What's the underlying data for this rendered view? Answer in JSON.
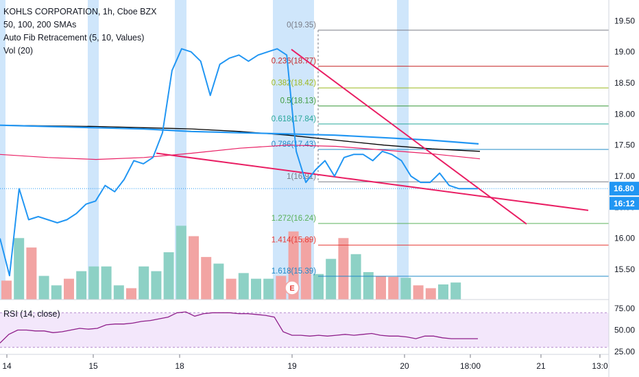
{
  "header": {
    "title": "KOHLS CORPORATION, 1h, Cboe BZX",
    "indicators": [
      "50, 100, 200 SMAs",
      "Auto Fib Retracement (5, 10, Values)",
      "Vol (20)"
    ]
  },
  "rsi": {
    "label": "RSI (14, close)",
    "series": [
      35,
      45,
      50,
      50,
      49,
      49,
      47,
      48,
      50,
      52,
      51,
      52,
      56,
      57,
      57,
      58,
      60,
      61,
      63,
      65,
      70,
      71,
      66,
      69,
      70,
      70,
      70,
      69,
      69,
      68,
      67,
      65,
      48,
      44,
      44,
      43,
      44,
      43,
      44,
      45,
      44,
      45,
      46,
      44,
      43,
      43,
      42,
      40,
      43,
      43,
      41,
      40,
      40,
      40,
      40
    ]
  },
  "price_axis": {
    "ticks": [
      "19.50",
      "19.00",
      "18.50",
      "18.00",
      "17.50",
      "17.00",
      "16.50",
      "16.00",
      "15.50"
    ],
    "current_price": "16.80",
    "countdown": "16:12"
  },
  "rsi_axis": {
    "ticks": [
      "75.00",
      "50.00",
      "25.00"
    ]
  },
  "time_axis": {
    "ticks": [
      "14",
      "15",
      "18",
      "19",
      "20",
      "18:00",
      "21",
      "13:0"
    ]
  },
  "earnings_marker": "E",
  "colors": {
    "price": "#2196f3",
    "sma_black": "#000000",
    "sma_red": "#e91e63",
    "sma_blue": "#2196f3",
    "trendline": "#e91e63",
    "highlight": "#cfe6fb",
    "vol_up": "#8dd1c5",
    "vol_down": "#f2a4a3",
    "rsi_line": "#8e1e8a",
    "rsi_band": "#f3e7fb"
  },
  "chart_data": {
    "type": "line",
    "title": "KOHLS CORPORATION, 1h, Cboe BZX",
    "y_range": [
      15.2,
      19.75
    ],
    "price_series": [
      16.0,
      15.4,
      16.8,
      16.3,
      16.35,
      16.3,
      16.25,
      16.3,
      16.4,
      16.55,
      16.6,
      16.85,
      16.75,
      16.95,
      17.25,
      17.2,
      17.3,
      17.7,
      18.7,
      19.05,
      19.0,
      18.85,
      18.3,
      18.8,
      18.9,
      18.95,
      18.85,
      18.95,
      19.0,
      19.05,
      18.95,
      17.4,
      16.9,
      17.1,
      17.25,
      17.0,
      17.3,
      17.35,
      17.35,
      17.25,
      17.4,
      17.35,
      17.25,
      17.0,
      16.9,
      16.9,
      17.05,
      16.85,
      16.8,
      16.8,
      16.8
    ],
    "fib_levels": [
      {
        "label": "0(19.35)",
        "ratio": "0",
        "value": 19.35,
        "color": "#787b86"
      },
      {
        "label": "0.236(18.77)",
        "ratio": "0.236",
        "value": 18.77,
        "color": "#c62828"
      },
      {
        "label": "0.382(18.42)",
        "ratio": "0.382",
        "value": 18.42,
        "color": "#9cb81e"
      },
      {
        "label": "0.5(18.13)",
        "ratio": "0.5",
        "value": 18.13,
        "color": "#3c9a3c"
      },
      {
        "label": "0.618(17.84)",
        "ratio": "0.618",
        "value": 17.84,
        "color": "#26a69a"
      },
      {
        "label": "0.786(17.43)",
        "ratio": "0.786",
        "value": 17.43,
        "color": "#1e88c7"
      },
      {
        "label": "1(16.91)",
        "ratio": "1",
        "value": 16.91,
        "color": "#787b86"
      },
      {
        "label": "1.272(16.24)",
        "ratio": "1.272",
        "value": 16.24,
        "color": "#58b058"
      },
      {
        "label": "1.414(15.89)",
        "ratio": "1.414",
        "value": 15.89,
        "color": "#e53935"
      },
      {
        "label": "1.618(15.39)",
        "ratio": "1.618",
        "value": 15.39,
        "color": "#1e88c7"
      }
    ],
    "sma_black": [
      17.82,
      17.81,
      17.8,
      17.78,
      17.76,
      17.72,
      17.66,
      17.58,
      17.5,
      17.44,
      17.4
    ],
    "sma_blue": [
      17.82,
      17.8,
      17.78,
      17.76,
      17.72,
      17.7,
      17.68,
      17.66,
      17.62,
      17.58,
      17.52
    ],
    "sma_red": [
      17.35,
      17.3,
      17.27,
      17.3,
      17.37,
      17.45,
      17.5,
      17.48,
      17.42,
      17.36,
      17.28
    ],
    "volume": {
      "values": [
        20,
        65,
        55,
        25,
        15,
        22,
        30,
        35,
        35,
        15,
        12,
        35,
        30,
        50,
        78,
        67,
        45,
        38,
        22,
        28,
        22,
        22,
        25,
        72,
        65,
        27,
        43,
        65,
        48,
        29,
        25,
        24,
        23,
        15,
        12,
        16,
        18
      ],
      "direction": [
        "d",
        "u",
        "d",
        "u",
        "u",
        "d",
        "u",
        "u",
        "u",
        "u",
        "d",
        "u",
        "u",
        "u",
        "u",
        "d",
        "d",
        "u",
        "d",
        "u",
        "u",
        "u",
        "d",
        "d",
        "d",
        "u",
        "u",
        "d",
        "u",
        "u",
        "d",
        "d",
        "u",
        "d",
        "d",
        "u",
        "u"
      ]
    }
  }
}
